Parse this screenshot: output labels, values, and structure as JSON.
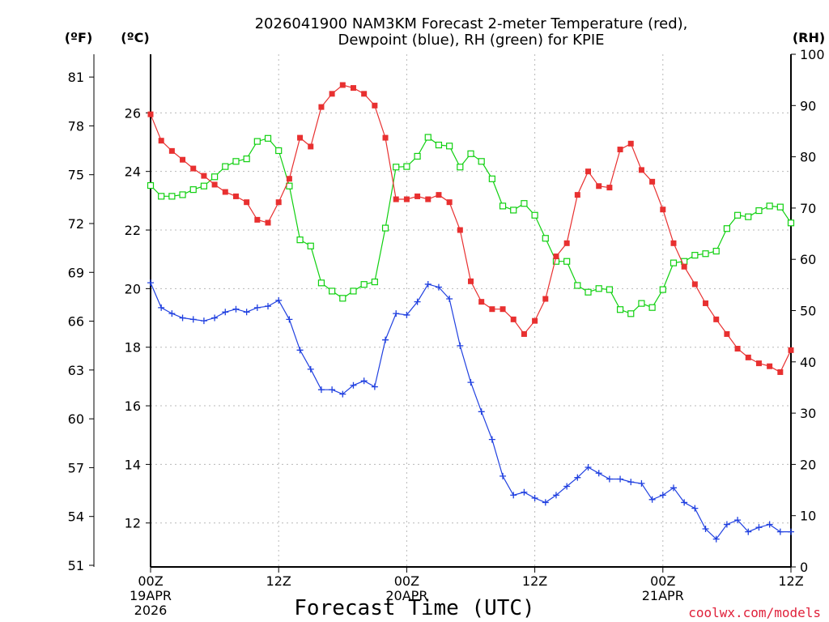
{
  "chart_data": {
    "type": "line",
    "title_line1": "2026041900 NAM3KM Forecast 2-meter Temperature (red),",
    "title_line2": "Dewpoint (blue), RH (green) for KPIE",
    "xlabel": "Forecast Time (UTC)",
    "credit": "coolwx.com/models",
    "colors": {
      "temperature": "#e83030",
      "dewpoint": "#2040e0",
      "rh": "#10d010"
    },
    "x_hours": {
      "start": 0,
      "end": 60,
      "step": 1
    },
    "x_ticks": [
      {
        "hour": 0,
        "label1": "00Z",
        "label2": "19APR",
        "label3": "2026"
      },
      {
        "hour": 12,
        "label1": "12Z",
        "label2": "",
        "label3": ""
      },
      {
        "hour": 24,
        "label1": "00Z",
        "label2": "20APR",
        "label3": ""
      },
      {
        "hour": 36,
        "label1": "12Z",
        "label2": "",
        "label3": ""
      },
      {
        "hour": 48,
        "label1": "00Z",
        "label2": "21APR",
        "label3": ""
      },
      {
        "hour": 60,
        "label1": "12Z",
        "label2": "",
        "label3": ""
      }
    ],
    "axes": {
      "celsius": {
        "unit_label": "(ºC)",
        "ylim": [
          10.5,
          28
        ],
        "ticks": [
          "12",
          "14",
          "16",
          "18",
          "20",
          "22",
          "24",
          "26"
        ]
      },
      "fahrenheit": {
        "unit_label": "(ºF)",
        "ylim": [
          50.9,
          82.4
        ],
        "ticks": [
          "51",
          "54",
          "57",
          "60",
          "63",
          "66",
          "69",
          "72",
          "75",
          "78",
          "81"
        ]
      },
      "rh": {
        "unit_label": "(RH)",
        "ylim": [
          0,
          100
        ],
        "ticks": [
          "0",
          "10",
          "20",
          "30",
          "40",
          "50",
          "60",
          "70",
          "80",
          "90",
          "100"
        ]
      }
    },
    "series": [
      {
        "name": "Temperature",
        "units": "C",
        "values": [
          25.95,
          25.05,
          24.7,
          24.4,
          24.1,
          23.85,
          23.55,
          23.3,
          23.15,
          22.95,
          22.35,
          22.25,
          22.95,
          23.75,
          25.15,
          24.85,
          26.2,
          26.65,
          26.95,
          26.85,
          26.65,
          26.25,
          25.15,
          23.05,
          23.05,
          23.15,
          23.05,
          23.2,
          22.95,
          22.0,
          20.25,
          19.55,
          19.3,
          19.3,
          18.95,
          18.45,
          18.9,
          19.65,
          21.1,
          21.55,
          23.2,
          24.0,
          23.5,
          23.45,
          24.75,
          24.95,
          24.05,
          23.65,
          22.7,
          21.55,
          20.75,
          20.15,
          19.5,
          18.95,
          18.45,
          17.95,
          17.65,
          17.45,
          17.35,
          17.15,
          17.9
        ]
      },
      {
        "name": "Dewpoint",
        "units": "C",
        "values": [
          20.2,
          19.35,
          19.15,
          19.0,
          18.95,
          18.9,
          19.0,
          19.2,
          19.3,
          19.2,
          19.35,
          19.4,
          19.6,
          18.95,
          17.9,
          17.25,
          16.55,
          16.55,
          16.4,
          16.7,
          16.85,
          16.65,
          18.25,
          19.15,
          19.1,
          19.55,
          20.15,
          20.05,
          19.65,
          18.05,
          16.8,
          15.8,
          14.85,
          13.6,
          12.95,
          13.05,
          12.85,
          12.7,
          12.95,
          13.25,
          13.55,
          13.9,
          13.7,
          13.5,
          13.5,
          13.4,
          13.35,
          12.8,
          12.95,
          13.2,
          12.7,
          12.5,
          11.8,
          11.45,
          11.95,
          12.1,
          11.7,
          11.85,
          11.95,
          11.7,
          11.7
        ]
      },
      {
        "name": "Relative Humidity",
        "units": "%",
        "values": [
          74.4,
          72.3,
          72.3,
          72.6,
          73.6,
          74.3,
          76.1,
          78.1,
          79.1,
          79.6,
          83.0,
          83.6,
          81.2,
          74.3,
          63.8,
          62.6,
          55.4,
          53.8,
          52.4,
          53.8,
          55.1,
          55.6,
          66.1,
          78.0,
          78.1,
          80.1,
          83.8,
          82.3,
          82.1,
          78.0,
          80.6,
          79.1,
          75.7,
          70.4,
          69.6,
          70.9,
          68.6,
          64.1,
          59.6,
          59.6,
          54.9,
          53.6,
          54.3,
          54.1,
          50.2,
          49.4,
          51.4,
          50.6,
          54.1,
          59.3,
          59.6,
          60.8,
          61.1,
          61.6,
          66.0,
          68.6,
          68.3,
          69.5,
          70.4,
          70.2,
          67.1
        ]
      }
    ]
  }
}
